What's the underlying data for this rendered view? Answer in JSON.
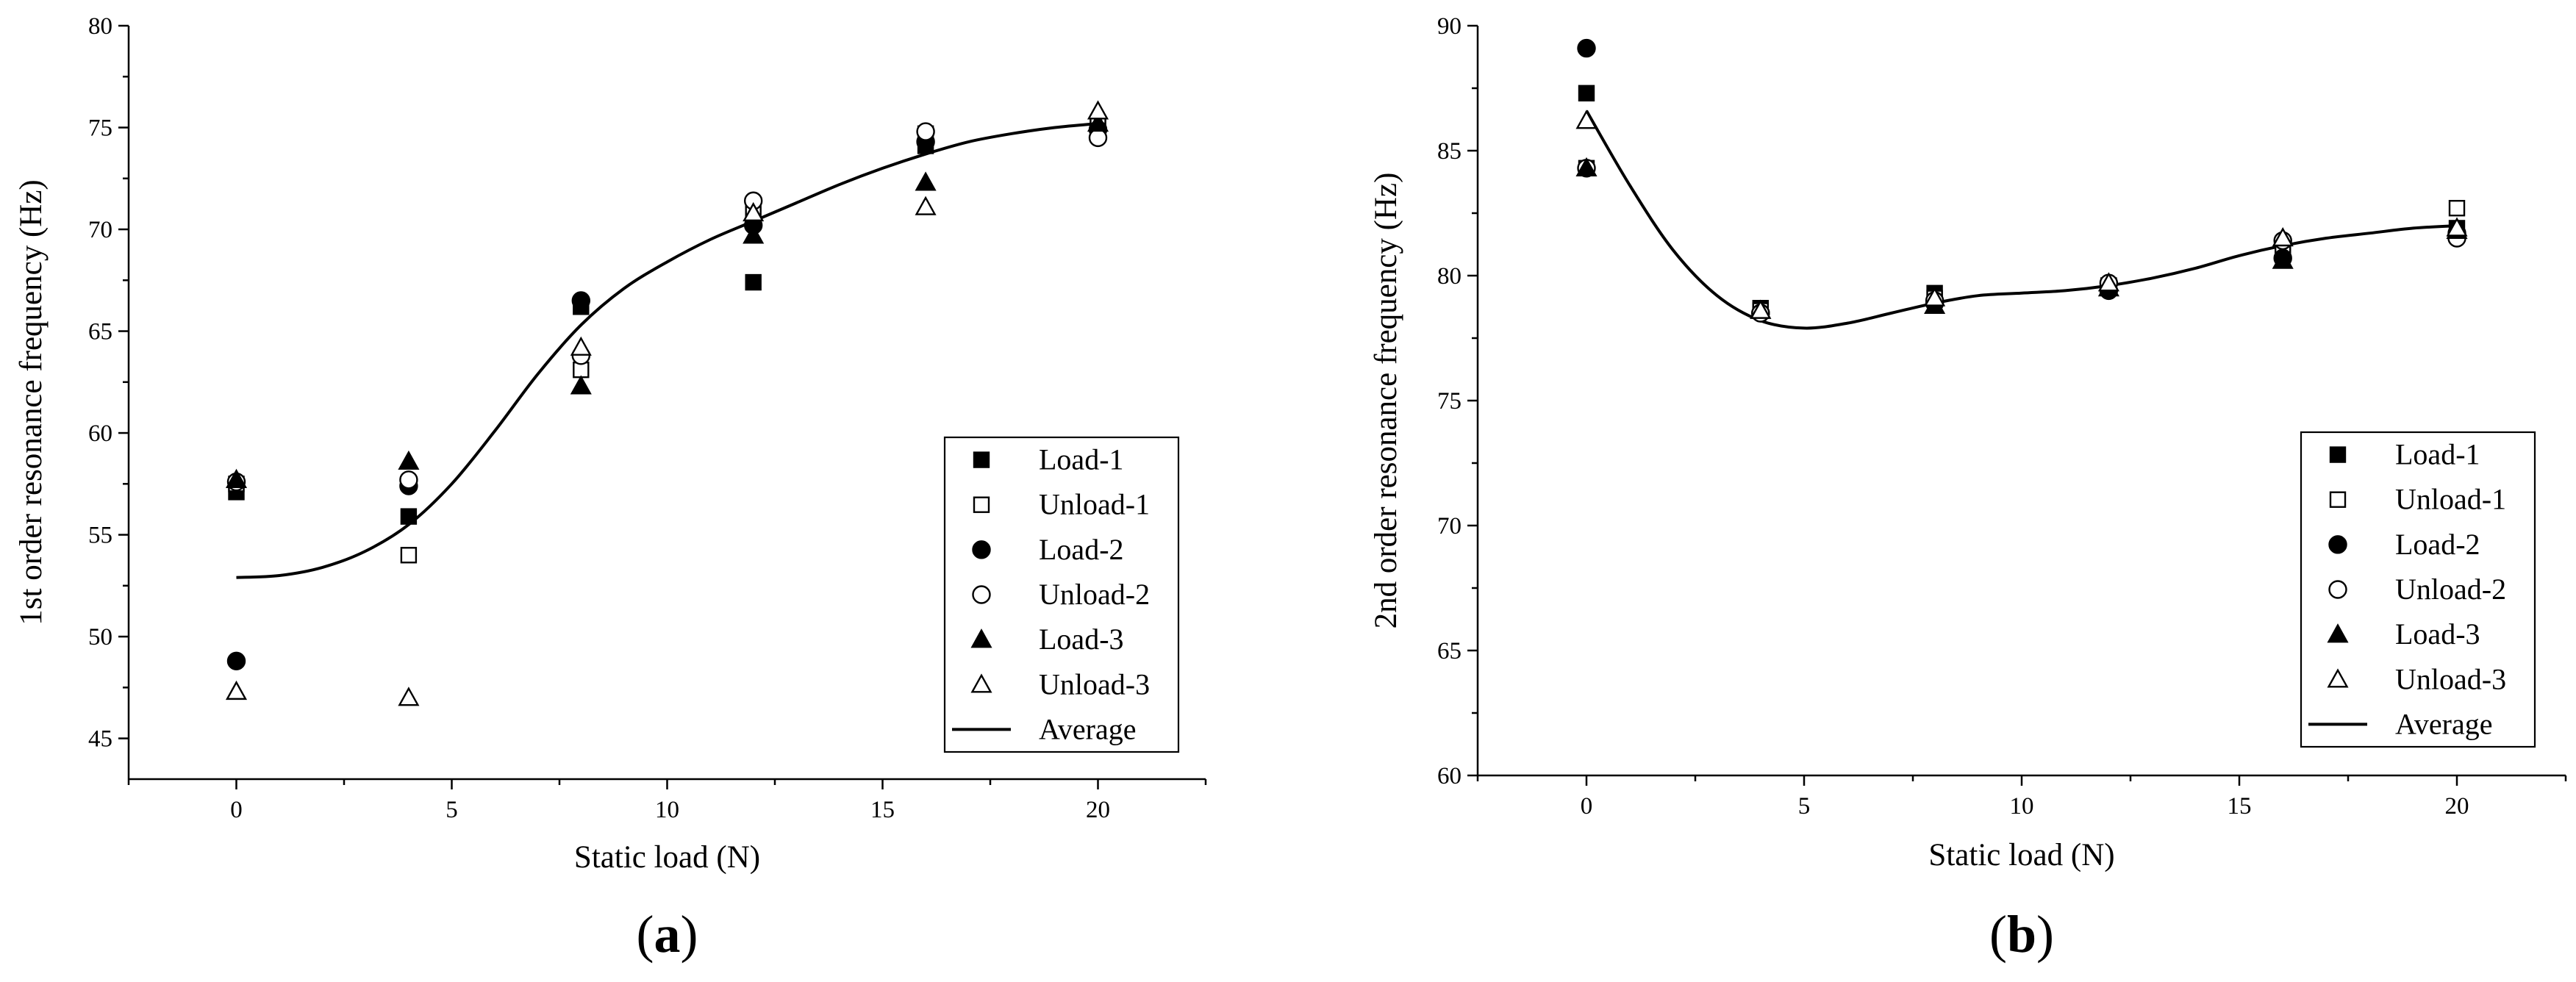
{
  "chart_data": [
    {
      "type": "scatter",
      "panel_label": "a",
      "title": "",
      "xlabel": "Static load (N)",
      "ylabel": "1st order resonance frequency (Hz)",
      "xlim": [
        -2.5,
        22.5
      ],
      "ylim": [
        43,
        80
      ],
      "xticks": [
        0,
        5,
        10,
        15,
        20
      ],
      "yticks": [
        45,
        50,
        55,
        60,
        65,
        70,
        75,
        80
      ],
      "legend_position": "bottom-right",
      "series": [
        {
          "name": "Load-1",
          "marker": "square-filled",
          "x": [
            0,
            4,
            8,
            12,
            16,
            20
          ],
          "values": [
            57.1,
            55.9,
            66.2,
            67.4,
            74.1,
            75.0
          ]
        },
        {
          "name": "Unload-1",
          "marker": "square-open",
          "x": [
            0,
            4,
            8,
            12,
            16,
            20
          ],
          "values": [
            57.5,
            54.0,
            63.1,
            71.0,
            74.7,
            75.2
          ]
        },
        {
          "name": "Load-2",
          "marker": "circle-filled",
          "x": [
            0,
            4,
            8,
            12,
            16,
            20
          ],
          "values": [
            48.8,
            57.4,
            66.5,
            70.2,
            74.3,
            74.9
          ]
        },
        {
          "name": "Unload-2",
          "marker": "circle-open",
          "x": [
            0,
            4,
            8,
            12,
            16,
            20
          ],
          "values": [
            57.6,
            57.7,
            63.8,
            71.4,
            74.8,
            74.5
          ]
        },
        {
          "name": "Load-3",
          "marker": "triangle-filled",
          "x": [
            0,
            4,
            8,
            12,
            16,
            20
          ],
          "values": [
            57.7,
            58.6,
            62.3,
            69.7,
            72.3,
            75.2
          ]
        },
        {
          "name": "Unload-3",
          "marker": "triangle-open",
          "x": [
            0,
            4,
            8,
            12,
            16,
            20
          ],
          "values": [
            47.3,
            47.0,
            64.2,
            70.8,
            71.1,
            75.8
          ]
        },
        {
          "name": "Average",
          "marker": "line",
          "x": [
            0,
            1,
            2,
            3,
            4,
            5,
            6,
            7,
            8,
            9,
            10,
            11,
            12,
            13,
            14,
            15,
            16,
            17,
            18,
            19,
            20
          ],
          "values": [
            52.9,
            53.0,
            53.4,
            54.2,
            55.5,
            57.5,
            60.1,
            62.9,
            65.3,
            67.1,
            68.4,
            69.5,
            70.4,
            71.3,
            72.2,
            73.0,
            73.7,
            74.3,
            74.7,
            75.0,
            75.2
          ]
        }
      ]
    },
    {
      "type": "scatter",
      "panel_label": "b",
      "title": "",
      "xlabel": "Static load (N)",
      "ylabel": "2nd order resonance frequency (Hz)",
      "xlim": [
        -2.5,
        22.5
      ],
      "ylim": [
        60,
        90
      ],
      "xticks": [
        0,
        5,
        10,
        15,
        20
      ],
      "yticks": [
        60,
        65,
        70,
        75,
        80,
        85,
        90
      ],
      "legend_position": "bottom-right",
      "series": [
        {
          "name": "Load-1",
          "marker": "square-filled",
          "x": [
            0,
            4,
            8,
            12,
            16,
            20
          ],
          "values": [
            87.3,
            78.7,
            79.3,
            79.6,
            80.9,
            81.9
          ]
        },
        {
          "name": "Unload-1",
          "marker": "square-open",
          "x": [
            0,
            4,
            8,
            12,
            16,
            20
          ],
          "values": [
            84.3,
            78.6,
            79.1,
            79.6,
            81.2,
            82.7
          ]
        },
        {
          "name": "Load-2",
          "marker": "circle-filled",
          "x": [
            0,
            4,
            8,
            12,
            16,
            20
          ],
          "values": [
            89.1,
            78.5,
            78.9,
            79.4,
            80.7,
            81.7
          ]
        },
        {
          "name": "Unload-2",
          "marker": "circle-open",
          "x": [
            0,
            4,
            8,
            12,
            16,
            20
          ],
          "values": [
            84.3,
            78.5,
            79.0,
            79.7,
            81.4,
            81.5
          ]
        },
        {
          "name": "Load-3",
          "marker": "triangle-filled",
          "x": [
            0,
            4,
            8,
            12,
            16,
            20
          ],
          "values": [
            84.3,
            78.6,
            78.8,
            79.5,
            80.6,
            81.8
          ]
        },
        {
          "name": "Unload-3",
          "marker": "triangle-open",
          "x": [
            0,
            4,
            8,
            12,
            16,
            20
          ],
          "values": [
            86.2,
            78.6,
            79.1,
            79.7,
            81.5,
            81.9
          ]
        },
        {
          "name": "Average",
          "marker": "line",
          "x": [
            0,
            1,
            2,
            3,
            4,
            5,
            6,
            7,
            8,
            9,
            10,
            11,
            12,
            13,
            14,
            15,
            16,
            17,
            18,
            19,
            20
          ],
          "values": [
            86.6,
            83.6,
            81.0,
            79.2,
            78.2,
            77.9,
            78.1,
            78.5,
            78.9,
            79.2,
            79.3,
            79.4,
            79.6,
            79.9,
            80.3,
            80.8,
            81.2,
            81.5,
            81.7,
            81.9,
            82.0
          ]
        }
      ]
    }
  ]
}
